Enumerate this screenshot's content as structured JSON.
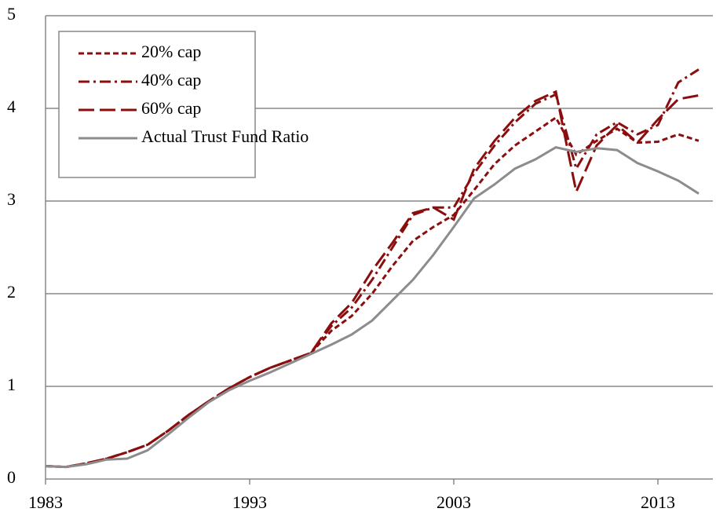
{
  "chart_data": {
    "type": "line",
    "x": [
      1983,
      1984,
      1985,
      1986,
      1987,
      1988,
      1989,
      1990,
      1991,
      1992,
      1993,
      1994,
      1995,
      1996,
      1997,
      1998,
      1999,
      2000,
      2001,
      2002,
      2003,
      2004,
      2005,
      2006,
      2007,
      2008,
      2009,
      2010,
      2011,
      2012,
      2013,
      2014,
      2015
    ],
    "series": [
      {
        "name": "20% cap",
        "color": "#8b0e0e",
        "dash": "7,4",
        "values": [
          0.14,
          0.13,
          0.17,
          0.22,
          0.29,
          0.37,
          0.52,
          0.69,
          0.84,
          0.98,
          1.1,
          1.2,
          1.28,
          1.36,
          1.6,
          1.76,
          2.0,
          2.3,
          2.57,
          2.72,
          2.85,
          3.12,
          3.4,
          3.6,
          3.75,
          3.9,
          3.5,
          3.65,
          3.78,
          3.63,
          3.64,
          3.72,
          3.65
        ]
      },
      {
        "name": "40% cap",
        "color": "#8b0e0e",
        "dash": "14,5,3,5",
        "values": [
          0.14,
          0.13,
          0.17,
          0.22,
          0.29,
          0.37,
          0.52,
          0.69,
          0.84,
          0.98,
          1.1,
          1.2,
          1.28,
          1.36,
          1.65,
          1.85,
          2.15,
          2.5,
          2.85,
          2.93,
          2.93,
          3.3,
          3.6,
          3.85,
          4.05,
          4.15,
          3.35,
          3.72,
          3.85,
          3.72,
          3.82,
          4.28,
          4.42
        ]
      },
      {
        "name": "60% cap",
        "color": "#8b0e0e",
        "dash": "20,7",
        "values": [
          0.14,
          0.13,
          0.17,
          0.22,
          0.29,
          0.37,
          0.52,
          0.69,
          0.84,
          0.98,
          1.1,
          1.2,
          1.28,
          1.36,
          1.68,
          1.9,
          2.25,
          2.55,
          2.87,
          2.93,
          2.8,
          3.35,
          3.65,
          3.9,
          4.08,
          4.18,
          3.1,
          3.6,
          3.82,
          3.63,
          3.88,
          4.1,
          4.14
        ]
      },
      {
        "name": "Actual Trust Fund Ratio",
        "color": "#8c8c8c",
        "dash": "none",
        "values": [
          0.14,
          0.13,
          0.16,
          0.21,
          0.22,
          0.31,
          0.48,
          0.66,
          0.83,
          0.96,
          1.06,
          1.15,
          1.25,
          1.35,
          1.45,
          1.56,
          1.71,
          1.93,
          2.15,
          2.42,
          2.72,
          3.03,
          3.18,
          3.35,
          3.45,
          3.58,
          3.53,
          3.57,
          3.55,
          3.41,
          3.32,
          3.22,
          3.08
        ]
      }
    ],
    "xlim": [
      1983,
      2015
    ],
    "xticks": [
      1983,
      1993,
      2003,
      2013
    ],
    "ylim": [
      0,
      5
    ],
    "yticks": [
      0,
      1,
      2,
      3,
      4,
      5
    ],
    "grid": true,
    "legend": "top-left"
  }
}
